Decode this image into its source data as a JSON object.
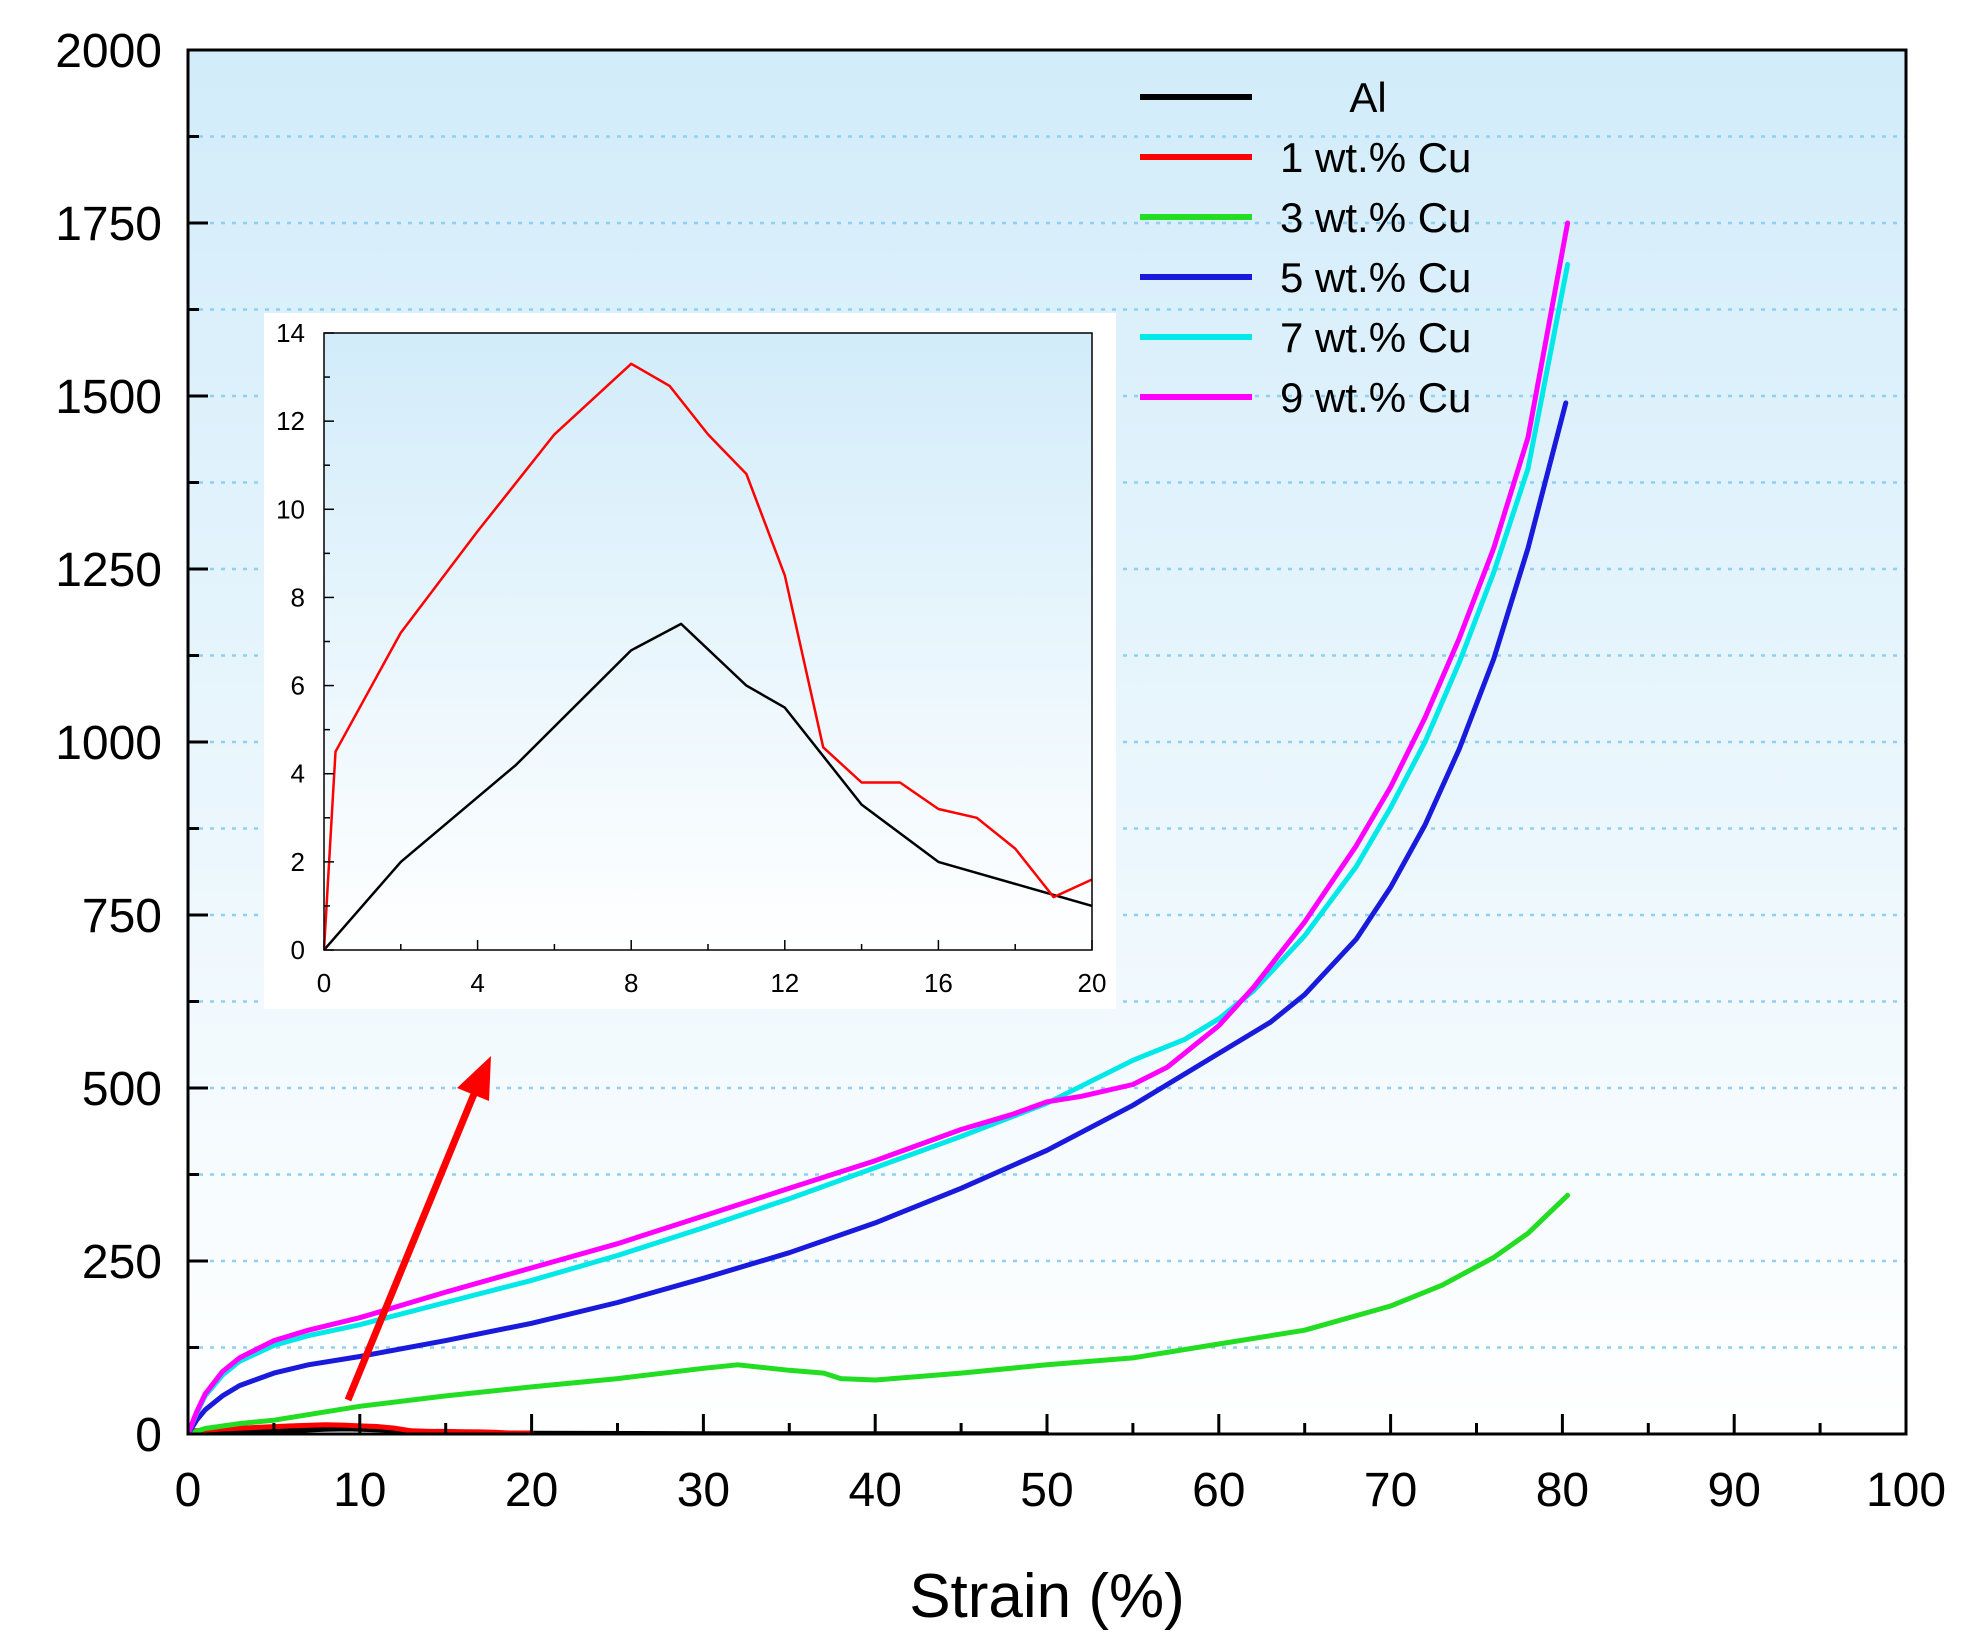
{
  "chart_data": {
    "type": "line",
    "title": "",
    "xlabel": "Strain (%)",
    "ylabel": "",
    "xlim": [
      0,
      100
    ],
    "ylim": [
      0,
      2000
    ],
    "x_ticks": [
      "0",
      "10",
      "20",
      "30",
      "40",
      "50",
      "60",
      "70",
      "80",
      "90",
      "100"
    ],
    "y_ticks": [
      "0",
      "250",
      "500",
      "750",
      "1000",
      "1250",
      "1500",
      "1750",
      "2000"
    ],
    "grid": "dotted horizontal",
    "legend_position": "top-right",
    "colors": {
      "Al": "#000000",
      "1 wt.% Cu": "#ff0000",
      "3 wt.% Cu": "#22dd22",
      "5 wt.% Cu": "#1a1adc",
      "7 wt.% Cu": "#00e8e8",
      "9 wt.% Cu": "#ff00ff",
      "arrow": "#ff0000",
      "background_top": "#d2ecfa",
      "background_bottom": "#ffffff"
    },
    "series": [
      {
        "name": "Al",
        "x": [
          0,
          2,
          5,
          8,
          9.3,
          11,
          12,
          14,
          16,
          20,
          30,
          50
        ],
        "y": [
          0,
          2,
          4.2,
          6.8,
          7.4,
          6,
          5.5,
          3.3,
          2,
          1,
          0.5,
          0.3
        ]
      },
      {
        "name": "1 wt.% Cu",
        "x": [
          0,
          0.3,
          2,
          4,
          6,
          8,
          9,
          10,
          11,
          12,
          13,
          14,
          15,
          16,
          17,
          18,
          19,
          20
        ],
        "y": [
          0,
          4.5,
          7.2,
          9.5,
          11.7,
          13.3,
          12.8,
          11.7,
          10.8,
          8.5,
          4.6,
          3.8,
          3.8,
          3.2,
          3,
          2.3,
          1.2,
          1.6
        ]
      },
      {
        "name": "3 wt.% Cu",
        "x": [
          0,
          1,
          3,
          5,
          10,
          15,
          20,
          25,
          30,
          32,
          35,
          37,
          38,
          40,
          42,
          45,
          50,
          55,
          60,
          65,
          70,
          73,
          76,
          78,
          80.3
        ],
        "y": [
          0,
          8,
          15,
          20,
          40,
          55,
          68,
          80,
          95,
          100,
          92,
          88,
          80,
          78,
          82,
          88,
          100,
          110,
          130,
          150,
          185,
          215,
          255,
          290,
          345
        ]
      },
      {
        "name": "5 wt.% Cu",
        "x": [
          0,
          0.5,
          1,
          2,
          3,
          5,
          7,
          10,
          15,
          20,
          25,
          30,
          35,
          40,
          45,
          50,
          55,
          60,
          63,
          65,
          68,
          70,
          72,
          74,
          76,
          78,
          80.2
        ],
        "y": [
          0,
          20,
          35,
          55,
          70,
          88,
          100,
          112,
          135,
          160,
          190,
          225,
          262,
          305,
          355,
          410,
          475,
          550,
          595,
          635,
          715,
          790,
          880,
          990,
          1120,
          1280,
          1490
        ]
      },
      {
        "name": "7 wt.% Cu",
        "x": [
          0,
          0.5,
          1,
          2,
          3,
          5,
          7,
          10,
          15,
          20,
          25,
          30,
          35,
          40,
          45,
          50,
          55,
          58,
          60,
          62,
          65,
          68,
          70,
          72,
          74,
          76,
          78,
          80.3
        ],
        "y": [
          0,
          30,
          55,
          85,
          105,
          128,
          142,
          158,
          190,
          222,
          258,
          298,
          340,
          385,
          430,
          478,
          540,
          570,
          600,
          640,
          720,
          820,
          905,
          1000,
          1115,
          1245,
          1395,
          1690
        ]
      },
      {
        "name": "9 wt.% Cu",
        "x": [
          0,
          0.5,
          1,
          2,
          3,
          5,
          7,
          10,
          15,
          20,
          25,
          30,
          35,
          40,
          45,
          48,
          50,
          52,
          55,
          57,
          60,
          62,
          65,
          68,
          70,
          72,
          74,
          76,
          78,
          80.3
        ],
        "y": [
          0,
          32,
          58,
          90,
          110,
          135,
          150,
          168,
          205,
          240,
          275,
          315,
          355,
          395,
          440,
          462,
          480,
          488,
          505,
          530,
          590,
          645,
          740,
          850,
          935,
          1035,
          1150,
          1280,
          1440,
          1750
        ]
      }
    ],
    "inset": {
      "type": "line",
      "xlim": [
        0,
        20
      ],
      "ylim": [
        0,
        14
      ],
      "x_ticks": [
        "0",
        "4",
        "8",
        "12",
        "16",
        "20"
      ],
      "y_ticks": [
        "0",
        "2",
        "4",
        "6",
        "8",
        "10",
        "12",
        "14"
      ],
      "series_names": [
        "Al",
        "1 wt.% Cu"
      ]
    },
    "annotations": [
      "red arrow pointing from the low-strain curves to the inset"
    ]
  }
}
